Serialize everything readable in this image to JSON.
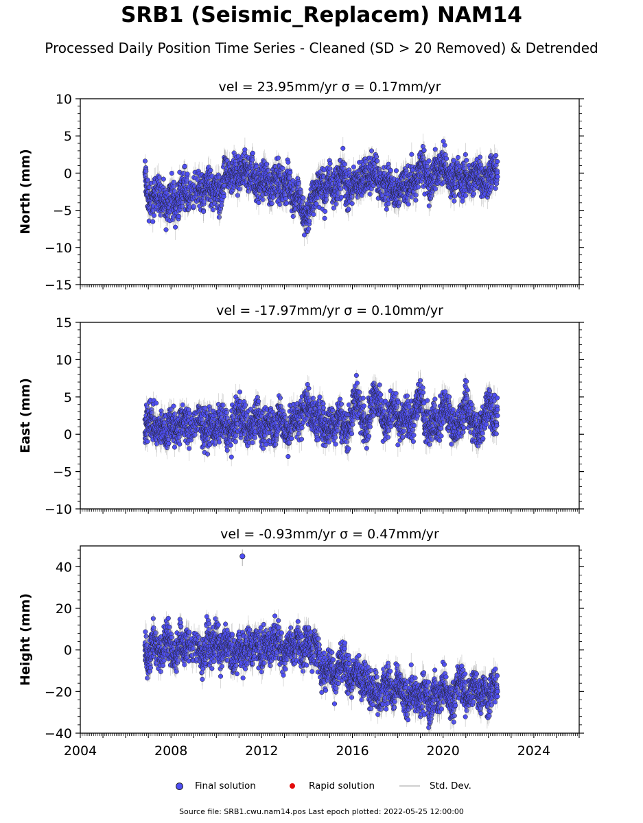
{
  "figure": {
    "title": "SRB1 (Seismic_Replacem) NAM14",
    "subtitle": "Processed Daily Position Time Series - Cleaned (SD > 20 Removed) & Detrended",
    "footer": "Source file: SRB1.cwu.nam14.pos  Last epoch plotted: 2022-05-25 12:00:00",
    "legend": {
      "final": "Final solution",
      "rapid": "Rapid solution",
      "sd": "Std. Dev."
    },
    "colors": {
      "final_fill": "#4f4ff2",
      "final_edge": "#222222",
      "rapid": "#e30b0b",
      "sd": "#9a9a9a"
    }
  },
  "chart_data": [
    {
      "type": "scatter",
      "title": "vel = 23.95mm/yr   σ = 0.17mm/yr",
      "ylabel": "North (mm)",
      "xlim": [
        2004,
        2026
      ],
      "ylim": [
        -15,
        10
      ],
      "yticks": [
        10,
        5,
        0,
        -5,
        -10,
        -15
      ],
      "ytick_labels": [
        "10",
        "5",
        "0",
        "−5",
        "−10",
        "−15"
      ],
      "xticks": [
        2004,
        2008,
        2012,
        2016,
        2020,
        2024
      ],
      "series": [
        {
          "x": [
            2006.85,
            2007.0,
            2007.2,
            2007.4,
            2007.6,
            2007.8,
            2008.0,
            2008.2,
            2008.4,
            2008.6,
            2008.8,
            2009.2,
            2009.4,
            2009.6,
            2009.8,
            2010.0,
            2010.2,
            2010.4,
            2010.6,
            2010.8,
            2011.0,
            2011.2,
            2011.4,
            2011.6,
            2011.8,
            2012.0,
            2012.2,
            2012.4,
            2012.6,
            2012.8,
            2013.0,
            2013.2,
            2013.4,
            2013.6,
            2013.8,
            2014.0,
            2014.2,
            2014.4,
            2014.6,
            2014.8,
            2015.0,
            2015.2,
            2015.4,
            2015.6,
            2015.8,
            2016.0,
            2016.2,
            2016.4,
            2016.6,
            2016.8,
            2017.0,
            2017.2,
            2017.4,
            2017.6,
            2017.8,
            2018.0,
            2018.2,
            2018.4,
            2018.6,
            2018.8,
            2019.0,
            2019.2,
            2019.4,
            2019.6,
            2019.8,
            2020.0,
            2020.2,
            2020.4,
            2020.6,
            2020.8,
            2021.0,
            2021.2,
            2021.4,
            2021.6,
            2021.8,
            2022.0,
            2022.2,
            2022.4
          ],
          "y": [
            -0.1,
            -3.5,
            -4.0,
            -2.0,
            -3.8,
            -5.0,
            -2.5,
            -4.5,
            -3.0,
            -1.5,
            -4.0,
            -1.5,
            -3.0,
            -1.0,
            -2.5,
            -2.0,
            -3.5,
            0.5,
            -1.5,
            0.0,
            -1.0,
            1.0,
            -0.5,
            0.5,
            -2.0,
            -1.0,
            -0.5,
            -2.5,
            0.0,
            -1.5,
            -2.0,
            -1.0,
            -3.5,
            -2.5,
            -5.5,
            -6.0,
            -4.0,
            -2.5,
            -1.0,
            -3.0,
            -0.5,
            -2.0,
            -1.0,
            0.0,
            -2.5,
            -2.0,
            -1.0,
            -1.5,
            0.5,
            -0.5,
            1.0,
            -1.5,
            -2.0,
            -1.0,
            -2.5,
            -3.5,
            -1.5,
            -2.0,
            -0.5,
            -1.5,
            1.0,
            0.5,
            -1.5,
            0.0,
            0.5,
            1.5,
            -0.5,
            -1.0,
            0.0,
            -1.5,
            -0.5,
            -1.0,
            -0.5,
            0.5,
            -1.5,
            -0.5,
            0.5,
            -0.5
          ]
        }
      ]
    },
    {
      "type": "scatter",
      "title": "vel = -17.97mm/yr   σ = 0.10mm/yr",
      "ylabel": "East (mm)",
      "xlim": [
        2004,
        2026
      ],
      "ylim": [
        -10,
        15
      ],
      "yticks": [
        15,
        10,
        5,
        0,
        -5,
        -10
      ],
      "ytick_labels": [
        "15",
        "10",
        "5",
        "0",
        "−5",
        "−10"
      ],
      "xticks": [
        2004,
        2008,
        2012,
        2016,
        2020,
        2024
      ],
      "series": [
        {
          "x": [
            2006.85,
            2007.0,
            2007.2,
            2007.4,
            2007.6,
            2007.8,
            2008.0,
            2008.2,
            2008.4,
            2008.6,
            2008.8,
            2009.2,
            2009.4,
            2009.6,
            2009.8,
            2010.0,
            2010.2,
            2010.4,
            2010.6,
            2010.8,
            2011.0,
            2011.2,
            2011.4,
            2011.6,
            2011.8,
            2012.0,
            2012.2,
            2012.4,
            2012.6,
            2012.8,
            2013.0,
            2013.2,
            2013.4,
            2013.6,
            2013.8,
            2014.0,
            2014.2,
            2014.4,
            2014.6,
            2014.8,
            2015.0,
            2015.2,
            2015.4,
            2015.6,
            2015.8,
            2016.0,
            2016.2,
            2016.4,
            2016.6,
            2016.8,
            2017.0,
            2017.2,
            2017.4,
            2017.6,
            2017.8,
            2018.0,
            2018.2,
            2018.4,
            2018.6,
            2018.8,
            2019.0,
            2019.2,
            2019.4,
            2019.6,
            2019.8,
            2020.0,
            2020.2,
            2020.4,
            2020.6,
            2020.8,
            2021.0,
            2021.2,
            2021.4,
            2021.6,
            2021.8,
            2022.0,
            2022.2,
            2022.4
          ],
          "y": [
            0.0,
            2.5,
            1.5,
            0.5,
            1.0,
            0.0,
            2.0,
            0.5,
            1.0,
            2.0,
            0.5,
            2.0,
            1.0,
            0.5,
            1.5,
            0.5,
            2.0,
            1.0,
            0.0,
            1.5,
            3.0,
            2.0,
            0.5,
            1.0,
            3.5,
            0.0,
            1.0,
            2.0,
            0.5,
            3.0,
            1.0,
            0.0,
            2.5,
            1.5,
            3.0,
            4.5,
            3.0,
            1.5,
            2.5,
            0.5,
            1.5,
            1.0,
            3.0,
            1.0,
            0.5,
            3.0,
            5.5,
            2.5,
            1.0,
            3.0,
            6.0,
            3.5,
            1.5,
            2.0,
            4.0,
            2.0,
            1.5,
            2.5,
            1.0,
            3.5,
            5.5,
            2.0,
            1.0,
            2.5,
            0.5,
            4.0,
            3.0,
            1.5,
            0.5,
            2.0,
            4.5,
            2.5,
            1.0,
            0.5,
            2.0,
            5.0,
            2.0,
            2.5
          ]
        }
      ]
    },
    {
      "type": "scatter",
      "title": "vel = -0.93mm/yr   σ = 0.47mm/yr",
      "ylabel": "Height (mm)",
      "xlim": [
        2004,
        2026
      ],
      "ylim": [
        -40,
        50
      ],
      "yticks": [
        40,
        20,
        0,
        -20,
        -40
      ],
      "ytick_labels": [
        "40",
        "20",
        "0",
        "−20",
        "−40"
      ],
      "xticks": [
        2004,
        2008,
        2012,
        2016,
        2020,
        2024
      ],
      "xtick_labels": [
        "2004",
        "2008",
        "2012",
        "2016",
        "2020",
        "2024"
      ],
      "series": [
        {
          "x": [
            2006.85,
            2007.0,
            2007.2,
            2007.4,
            2007.6,
            2007.8,
            2008.0,
            2008.2,
            2008.4,
            2008.6,
            2008.8,
            2009.2,
            2009.4,
            2009.6,
            2009.8,
            2010.0,
            2010.2,
            2010.4,
            2010.6,
            2010.8,
            2011.0,
            2011.2,
            2011.4,
            2011.6,
            2011.8,
            2012.0,
            2012.2,
            2012.4,
            2012.6,
            2012.8,
            2013.0,
            2013.2,
            2013.4,
            2013.6,
            2013.8,
            2014.0,
            2014.2,
            2014.4,
            2014.6,
            2014.8,
            2015.0,
            2015.2,
            2015.4,
            2015.6,
            2015.8,
            2016.0,
            2016.2,
            2016.4,
            2016.6,
            2016.8,
            2017.0,
            2017.2,
            2017.4,
            2017.6,
            2017.8,
            2018.0,
            2018.2,
            2018.4,
            2018.6,
            2018.8,
            2019.0,
            2019.2,
            2019.4,
            2019.6,
            2019.8,
            2020.0,
            2020.2,
            2020.4,
            2020.6,
            2020.8,
            2021.0,
            2021.2,
            2021.4,
            2021.6,
            2021.8,
            2022.0,
            2022.2,
            2022.4
          ],
          "y": [
            0.0,
            -5.0,
            5.0,
            0.0,
            -3.0,
            8.0,
            2.0,
            -4.0,
            6.0,
            0.0,
            3.0,
            2.0,
            -5.0,
            5.0,
            0.0,
            6.0,
            -3.0,
            4.0,
            0.0,
            -6.0,
            2.0,
            -2.0,
            3.0,
            0.0,
            5.0,
            -2.0,
            4.0,
            0.0,
            8.0,
            2.0,
            -3.0,
            3.0,
            0.0,
            5.0,
            -1.0,
            4.0,
            0.0,
            3.0,
            -8.0,
            -12.0,
            -5.0,
            -15.0,
            -8.0,
            -3.0,
            -12.0,
            -16.0,
            -8.0,
            -18.0,
            -10.0,
            -22.0,
            -16.0,
            -25.0,
            -18.0,
            -14.0,
            -24.0,
            -16.0,
            -20.0,
            -26.0,
            -18.0,
            -22.0,
            -25.0,
            -18.0,
            -28.0,
            -20.0,
            -24.0,
            -16.0,
            -22.0,
            -26.0,
            -18.0,
            -14.0,
            -24.0,
            -20.0,
            -16.0,
            -22.0,
            -18.0,
            -25.0,
            -16.0,
            -20.0
          ]
        },
        {
          "name": "outlier",
          "x": [
            2011.15
          ],
          "y": [
            45.0
          ]
        }
      ]
    }
  ]
}
